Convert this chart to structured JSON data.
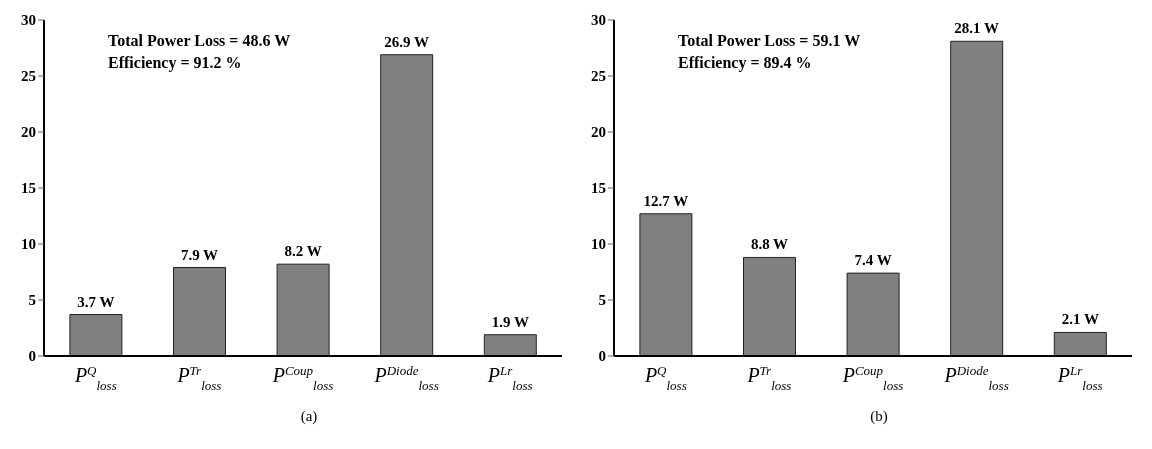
{
  "chart_data": [
    {
      "type": "bar",
      "xlabel": "(a)",
      "categories": [
        "P$^{Q}$$_{loss}$",
        "P$^{Tr}$$_{loss}$",
        "P$^{Coup}$$_{loss}$",
        "P$^{Diode}$$_{loss}$",
        "P$^{Lr}$$_{loss}$"
      ],
      "values": [
        3.7,
        7.9,
        8.2,
        26.9,
        1.9
      ],
      "value_labels": [
        "3.7 W",
        "7.9 W",
        "8.2 W",
        "26.9 W",
        "1.9 W"
      ],
      "color": "#808080",
      "ylim": [
        0,
        30
      ],
      "yticks": [
        0,
        5,
        10,
        15,
        20,
        25,
        30
      ],
      "annotations": [
        "Total Power Loss = 48.6 W",
        "Efficiency = 91.2 %"
      ]
    },
    {
      "type": "bar",
      "xlabel": "(b)",
      "categories": [
        "P$^{Q}$$_{loss}$",
        "P$^{Tr}$$_{loss}$",
        "P$^{Coup}$$_{loss}$",
        "P$^{Diode}$$_{loss}$",
        "P$^{Lr}$$_{loss}$"
      ],
      "values": [
        12.7,
        8.8,
        7.4,
        28.1,
        2.1
      ],
      "value_labels": [
        "12.7 W",
        "8.8 W",
        "7.4 W",
        "28.1 W",
        "2.1 W"
      ],
      "color": "#808080",
      "ylim": [
        0,
        30
      ],
      "yticks": [
        0,
        5,
        10,
        15,
        20,
        25,
        30
      ],
      "annotations": [
        "Total Power Loss = 59.1 W",
        "Efficiency = 89.4 %"
      ]
    }
  ]
}
